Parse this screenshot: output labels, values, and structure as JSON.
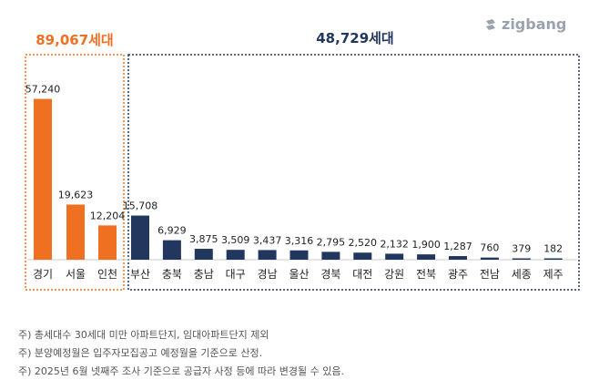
{
  "brand": "zigbang",
  "colors": {
    "capital": "#F07022",
    "regional": "#22375E",
    "capital_box": "#F07022",
    "regional_box": "#22375E",
    "text": "#222222"
  },
  "groups": {
    "capital_total": "89,067세대",
    "regional_total": "48,729세대"
  },
  "notes": [
    "주) 총세대수 30세대 미만 아파트단지, 임대아파트단지 제외",
    "주) 분양예정월은 입주자모집공고 예정월을 기준으로 산정.",
    "주) 2025년 6월 넷째주 조사 기준으로 공급자 사정 등에 따라 변경될 수 있음."
  ],
  "chart_data": {
    "type": "bar",
    "categories": [
      "경기",
      "서울",
      "인천",
      "부산",
      "충북",
      "충남",
      "대구",
      "경남",
      "울산",
      "경북",
      "대전",
      "강원",
      "전북",
      "광주",
      "전남",
      "세종",
      "제주"
    ],
    "values": [
      57240,
      19623,
      12204,
      15708,
      6929,
      3875,
      3509,
      3437,
      3316,
      2795,
      2520,
      2132,
      1900,
      1287,
      760,
      379,
      182
    ],
    "value_labels": [
      "57,240",
      "19,623",
      "12,204",
      "15,708",
      "6,929",
      "3,875",
      "3,509",
      "3,437",
      "3,316",
      "2,795",
      "2,520",
      "2,132",
      "1,900",
      "1,287",
      "760",
      "379",
      "182"
    ],
    "groups": [
      {
        "label": "89,067세대",
        "categories": [
          "경기",
          "서울",
          "인천"
        ]
      },
      {
        "label": "48,729세대",
        "categories": [
          "부산",
          "충북",
          "충남",
          "대구",
          "경남",
          "울산",
          "경북",
          "대전",
          "강원",
          "전북",
          "광주",
          "전남",
          "세종",
          "제주"
        ]
      }
    ],
    "title": "",
    "xlabel": "",
    "ylabel": "",
    "ylim": [
      0,
      60000
    ],
    "grid": false,
    "legend": "none"
  }
}
